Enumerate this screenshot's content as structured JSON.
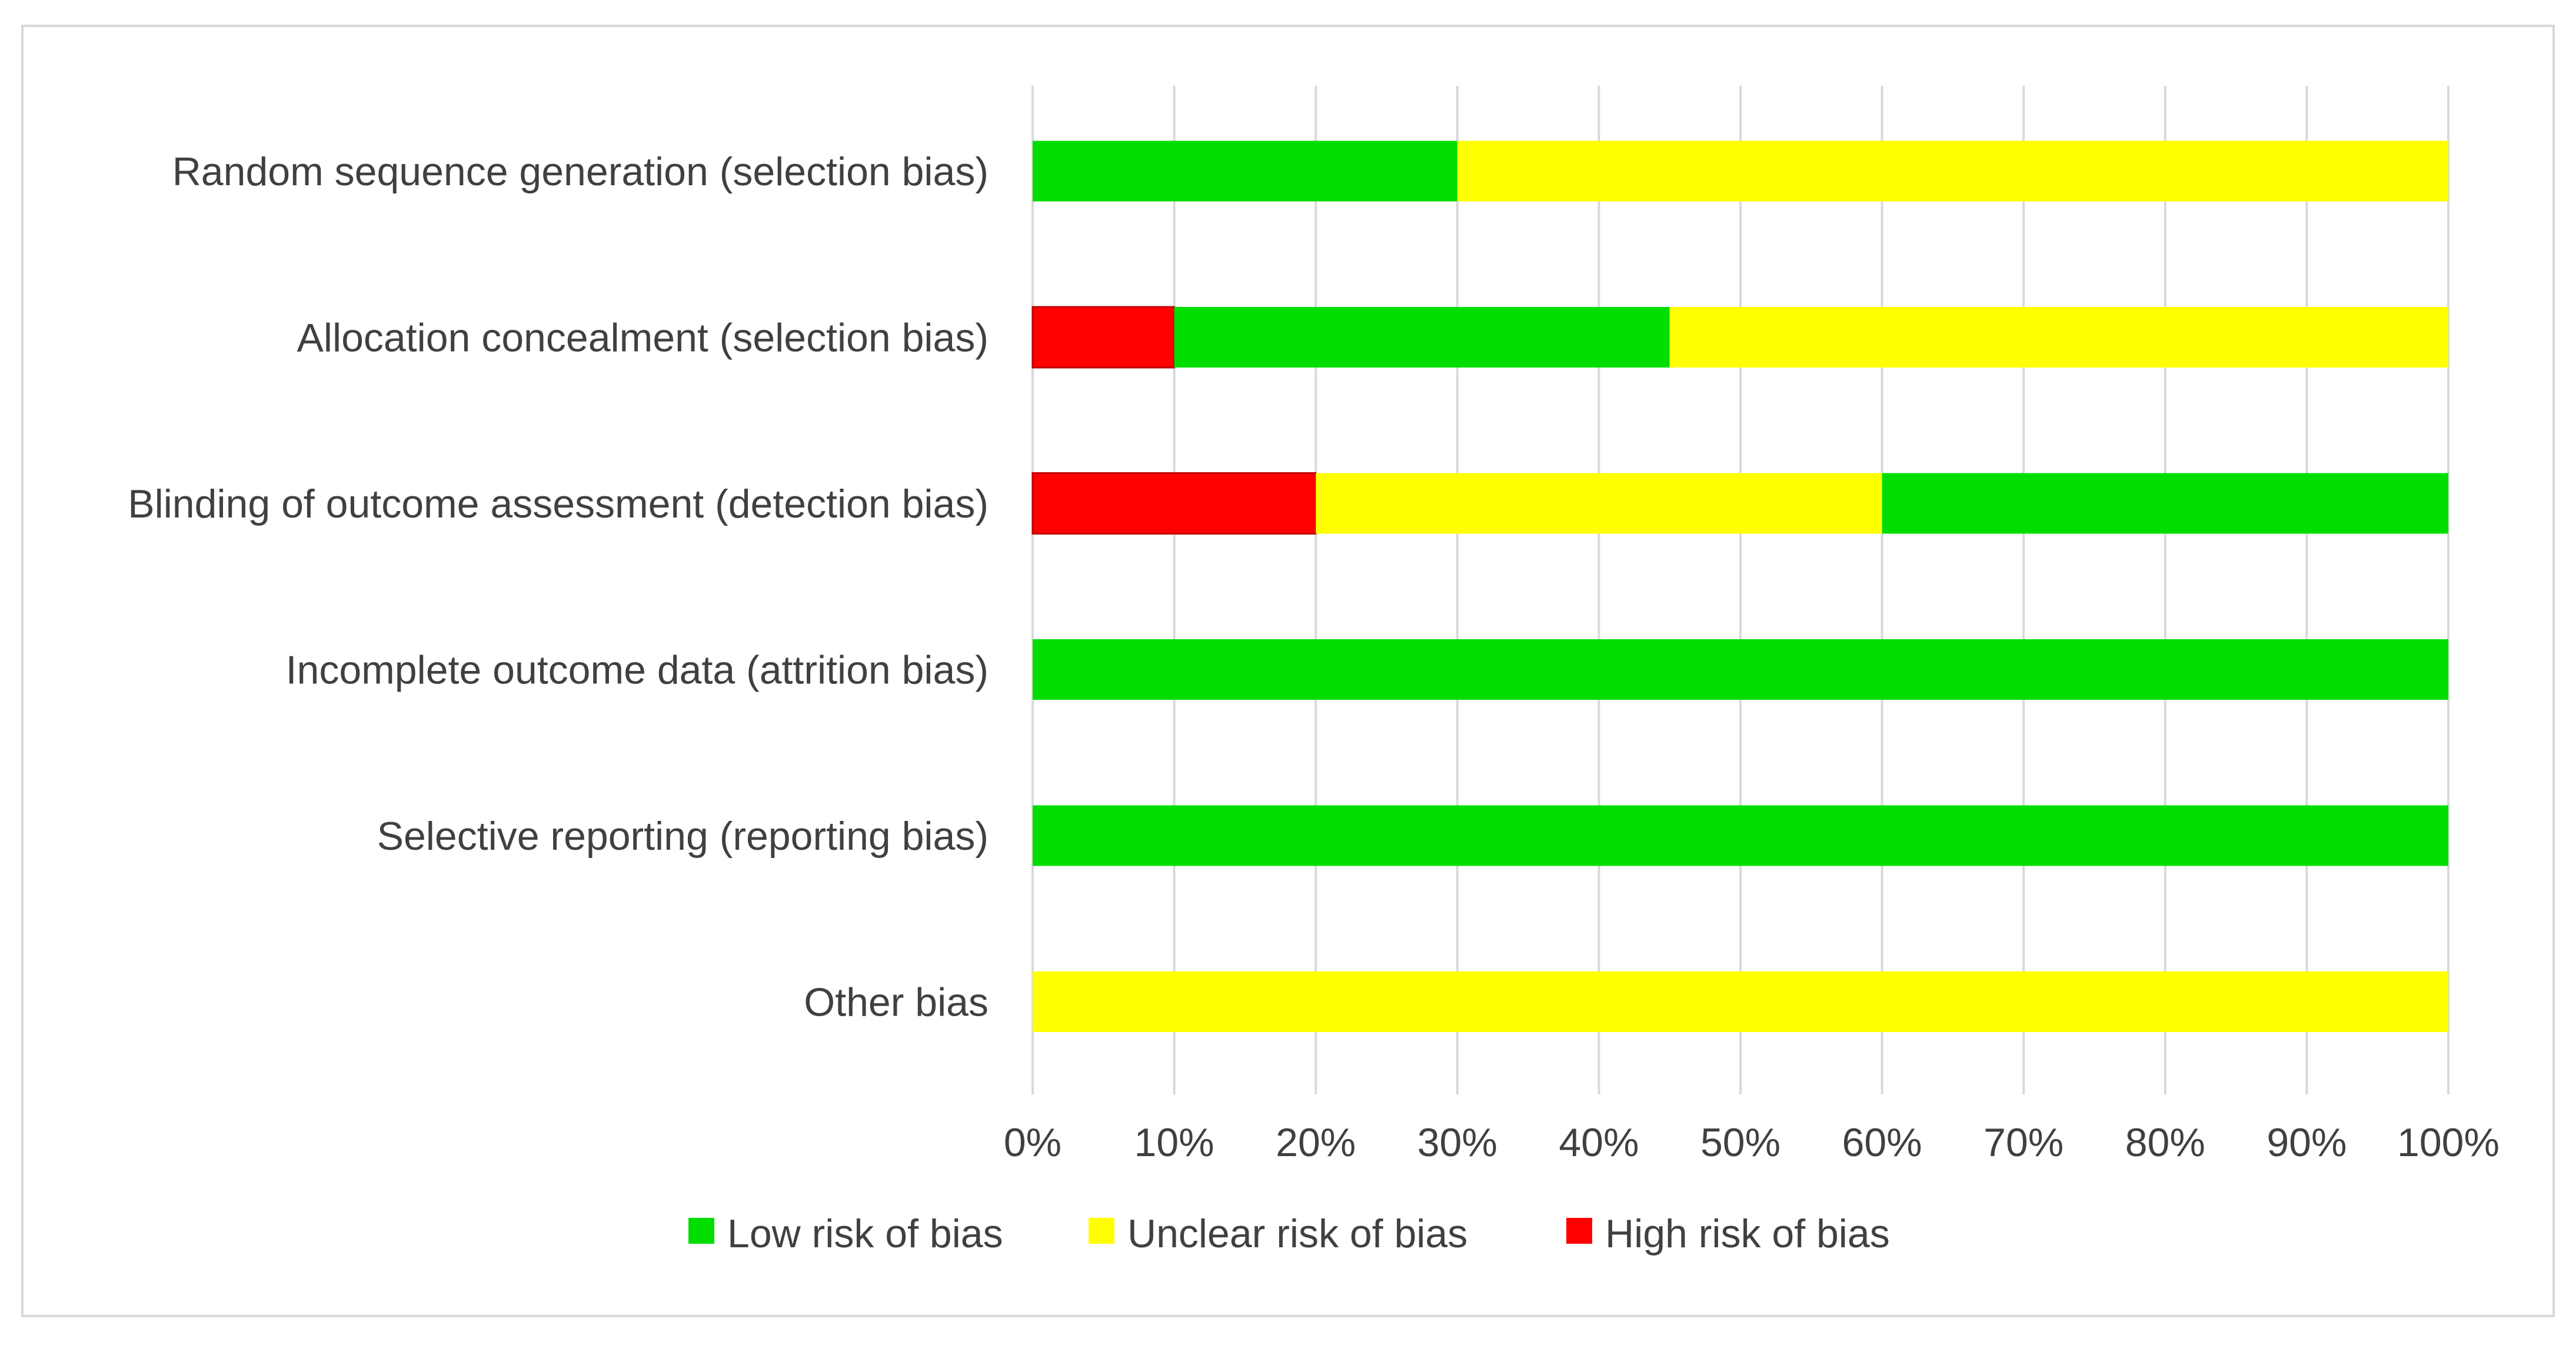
{
  "chart_data": {
    "type": "bar",
    "orientation": "horizontal",
    "stacked": true,
    "title": "",
    "xlabel": "",
    "ylabel": "",
    "xlim": [
      0,
      100
    ],
    "grid": true,
    "legend_position": "bottom",
    "x_ticks": [
      "0%",
      "10%",
      "20%",
      "30%",
      "40%",
      "50%",
      "60%",
      "70%",
      "80%",
      "90%",
      "100%"
    ],
    "categories": [
      "Random sequence generation (selection bias)",
      "Allocation concealment (selection bias)",
      "Blinding of outcome assessment (detection bias)",
      "Incomplete outcome data (attrition bias)",
      "Selective reporting (reporting bias)",
      "Other bias"
    ],
    "segments": [
      [
        {
          "series": "low",
          "value": 30
        },
        {
          "series": "unclear",
          "value": 70
        }
      ],
      [
        {
          "series": "high",
          "value": 10
        },
        {
          "series": "low",
          "value": 35
        },
        {
          "series": "unclear",
          "value": 55
        }
      ],
      [
        {
          "series": "high",
          "value": 20
        },
        {
          "series": "unclear",
          "value": 40
        },
        {
          "series": "low",
          "value": 40
        }
      ],
      [
        {
          "series": "low",
          "value": 100
        }
      ],
      [
        {
          "series": "low",
          "value": 100
        }
      ],
      [
        {
          "series": "unclear",
          "value": 100
        }
      ]
    ],
    "series": [
      {
        "key": "low",
        "name": "Low risk of bias",
        "color": "#00dd00",
        "values": [
          30,
          35,
          40,
          100,
          100,
          0
        ]
      },
      {
        "key": "unclear",
        "name": "Unclear risk of bias",
        "color": "#ffff00",
        "values": [
          70,
          55,
          40,
          0,
          0,
          100
        ]
      },
      {
        "key": "high",
        "name": "High risk of bias",
        "color": "#ff0000",
        "values": [
          0,
          10,
          20,
          0,
          0,
          0
        ]
      }
    ],
    "colors": {
      "grid": "#d9d9d9",
      "text": "#404040"
    }
  }
}
